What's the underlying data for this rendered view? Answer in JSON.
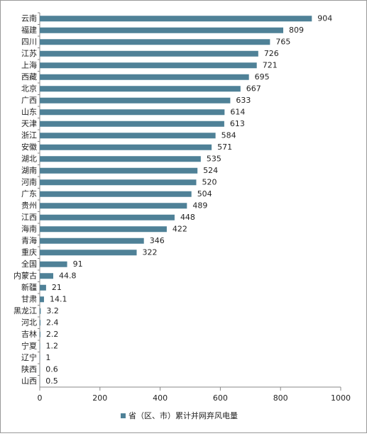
{
  "chart_data": {
    "type": "bar",
    "orientation": "horizontal",
    "categories": [
      "云南",
      "福建",
      "四川",
      "江苏",
      "上海",
      "西藏",
      "北京",
      "广西",
      "山东",
      "天津",
      "浙江",
      "安徽",
      "湖北",
      "湖南",
      "河南",
      "广东",
      "贵州",
      "江西",
      "海南",
      "青海",
      "重庆",
      "全国",
      "内蒙古",
      "新疆",
      "甘肃",
      "黑龙江",
      "河北",
      "吉林",
      "宁夏",
      "辽宁",
      "陕西",
      "山西"
    ],
    "series": [
      {
        "name": "省（区、市）累计并网弃风电量",
        "color": "#4f8197",
        "values": [
          904,
          809,
          765,
          726,
          721,
          695,
          667,
          633,
          614,
          613,
          584,
          571,
          535,
          524,
          520,
          504,
          489,
          448,
          422,
          346,
          322,
          91,
          44.8,
          21,
          14.1,
          3.2,
          2.4,
          2.2,
          1.2,
          1,
          0.6,
          0.5
        ]
      }
    ],
    "xlim": [
      0,
      1000
    ],
    "xticks": [
      0,
      200,
      400,
      600,
      800,
      1000
    ],
    "legend": "bottom"
  }
}
